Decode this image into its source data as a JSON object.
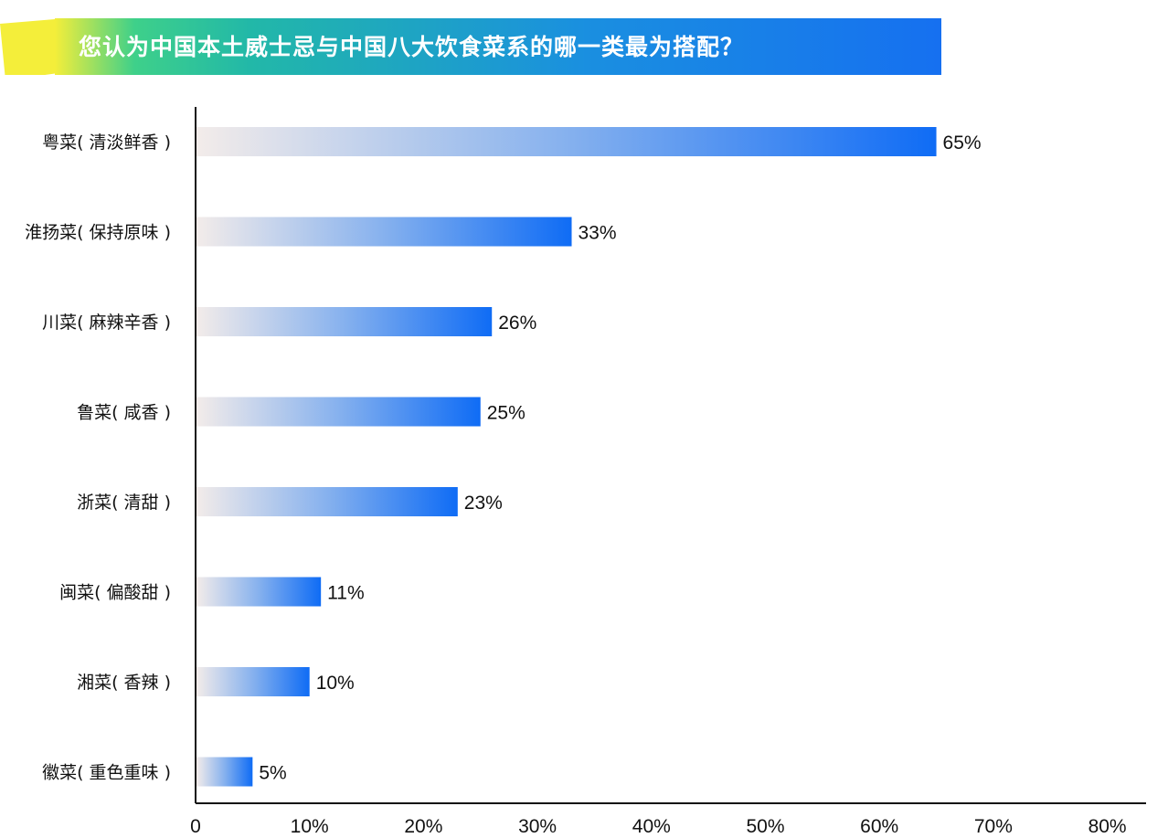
{
  "title": "您认为中国本土威士忌与中国八大饮食菜系的哪一类最为搭配？",
  "colors": {
    "bar_start": "#f3ecea",
    "bar_end": "#0f6cf5",
    "banner_yellow": "#f4ee3a",
    "banner_green": "#2fd28e",
    "banner_blue": "#1a74f0",
    "axis": "#111111"
  },
  "chart_data": {
    "type": "bar",
    "orientation": "horizontal",
    "title": "您认为中国本土威士忌与中国八大饮食菜系的哪一类最为搭配？",
    "xlabel": "",
    "ylabel": "",
    "categories": [
      "粤菜( 清淡鲜香 )",
      "淮扬菜( 保持原味 )",
      "川菜( 麻辣辛香 )",
      "鲁菜( 咸香 )",
      "浙菜( 清甜 )",
      "闽菜( 偏酸甜 )",
      "湘菜( 香辣 )",
      "徽菜( 重色重味 )"
    ],
    "values": [
      65,
      33,
      26,
      25,
      23,
      11,
      10,
      5
    ],
    "value_labels": [
      "65%",
      "33%",
      "26%",
      "25%",
      "23%",
      "11%",
      "10%",
      "5%"
    ],
    "xlim": [
      0,
      80
    ],
    "xticks": [
      0,
      10,
      20,
      30,
      40,
      50,
      60,
      70,
      80
    ],
    "xtick_labels": [
      "0",
      "10%",
      "20%",
      "30%",
      "40%",
      "50%",
      "60%",
      "70%",
      "80%"
    ],
    "grid": false,
    "legend": "none"
  }
}
